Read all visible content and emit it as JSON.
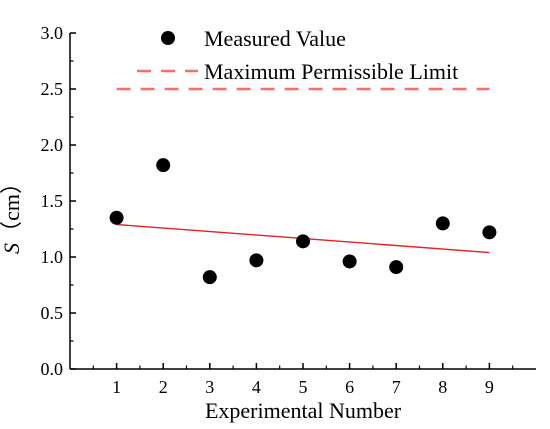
{
  "chart_data": {
    "type": "scatter",
    "xlabel": "Experimental Number",
    "ylabel_var": "S",
    "ylabel_unit": "（cm）",
    "xlim": [
      0,
      10
    ],
    "ylim": [
      0,
      3
    ],
    "x_ticks": [
      1,
      2,
      3,
      4,
      5,
      6,
      7,
      8,
      9
    ],
    "y_ticks": [
      "0.0",
      "0.5",
      "1.0",
      "1.5",
      "2.0",
      "2.5",
      "3.0"
    ],
    "legend_position": "top",
    "series": [
      {
        "name": "Measured Value",
        "kind": "scatter",
        "color": "#000000",
        "x": [
          1,
          2,
          3,
          4,
          5,
          6,
          7,
          8,
          9
        ],
        "y": [
          1.35,
          1.82,
          0.82,
          0.97,
          1.14,
          0.96,
          0.91,
          1.3,
          1.22
        ]
      },
      {
        "name": "Maximum Permissible Limit",
        "kind": "dashed-line",
        "color": "#ff6b6b",
        "x": [
          1,
          9
        ],
        "y": [
          2.5,
          2.5
        ]
      }
    ],
    "trend_line": {
      "color": "#e32222",
      "x": [
        1,
        9
      ],
      "y": [
        1.29,
        1.04
      ]
    },
    "grid": false
  }
}
